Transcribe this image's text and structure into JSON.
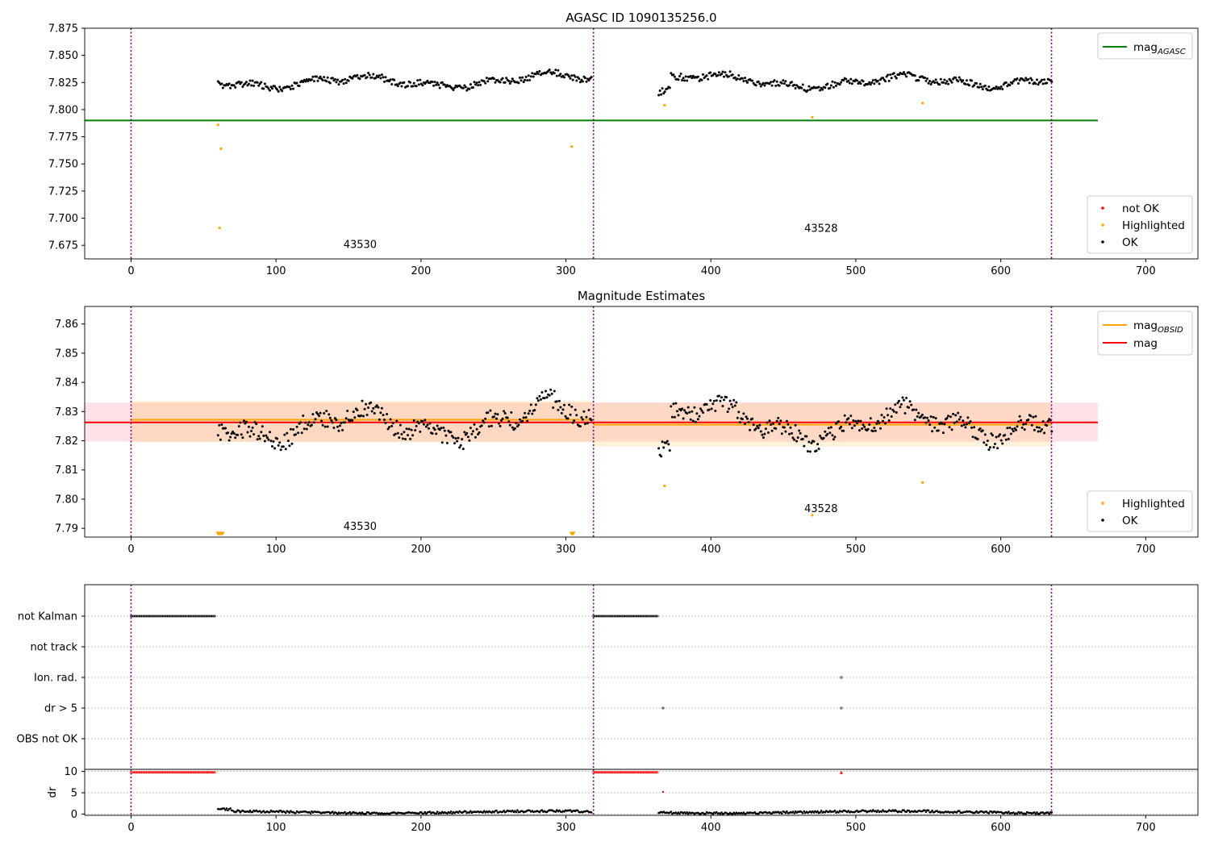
{
  "chart_data": [
    {
      "id": "top",
      "type": "scatter",
      "title": "AGASC ID 1090135256.0",
      "xlabel": "",
      "ylabel": "",
      "xlim": [
        -32,
        736
      ],
      "ylim": [
        7.6625,
        7.875
      ],
      "xticks": [
        0,
        100,
        200,
        300,
        400,
        500,
        600,
        700
      ],
      "yticks": [
        7.675,
        7.7,
        7.725,
        7.75,
        7.775,
        7.8,
        7.825,
        7.85,
        7.875
      ],
      "ytick_labels": [
        "7.675",
        "7.700",
        "7.725",
        "7.750",
        "7.775",
        "7.800",
        "7.825",
        "7.850",
        "7.875"
      ],
      "obsid_boundaries": [
        0,
        319,
        635
      ],
      "obsid_labels": [
        {
          "text": "43530",
          "x": 158,
          "y": 7.6725
        },
        {
          "text": "43528",
          "x": 476,
          "y": 7.6875
        }
      ],
      "lines": [
        {
          "name": "mag_AGASC",
          "y": 7.79,
          "x": [
            -32,
            667
          ],
          "color": "#008000"
        }
      ],
      "legend_top": {
        "position": "upper-right",
        "entries": [
          {
            "label": "mag",
            "subscript": "AGASC",
            "color": "#008000",
            "kind": "line"
          }
        ]
      },
      "legend_bottom": {
        "position": "lower-right",
        "entries": [
          {
            "label": "not OK",
            "color": "#ff0000",
            "kind": "dot"
          },
          {
            "label": "Highlighted",
            "color": "#ffa500",
            "kind": "dot"
          },
          {
            "label": "OK",
            "color": "#000000",
            "kind": "dot"
          }
        ]
      },
      "series": [
        {
          "name": "OK",
          "color": "#000000",
          "generated": true,
          "segments": [
            [
              60,
              318
            ],
            [
              364,
              636
            ]
          ]
        },
        {
          "name": "Highlighted",
          "color": "#ffa500",
          "x": [
            60,
            62,
            61,
            304,
            368,
            470,
            546
          ],
          "y": [
            7.786,
            7.764,
            7.691,
            7.766,
            7.804,
            7.793,
            7.806
          ]
        }
      ]
    },
    {
      "id": "middle",
      "type": "scatter",
      "title": "Magnitude Estimates",
      "xlabel": "",
      "ylabel": "",
      "xlim": [
        -32,
        736
      ],
      "ylim": [
        7.787,
        7.866
      ],
      "xticks": [
        0,
        100,
        200,
        300,
        400,
        500,
        600,
        700
      ],
      "yticks": [
        7.79,
        7.8,
        7.81,
        7.82,
        7.83,
        7.84,
        7.85,
        7.86
      ],
      "ytick_labels": [
        "7.79",
        "7.80",
        "7.81",
        "7.82",
        "7.83",
        "7.84",
        "7.85",
        "7.86"
      ],
      "obsid_boundaries": [
        0,
        319,
        635
      ],
      "obsid_labels": [
        {
          "text": "43530",
          "x": 158,
          "y": 7.7895
        },
        {
          "text": "43528",
          "x": 476,
          "y": 7.7955
        }
      ],
      "bands": [
        {
          "x": [
            -32,
            667
          ],
          "y": [
            7.8197,
            7.8331
          ],
          "color": "#ff3355",
          "opacity": 0.14
        },
        {
          "x": [
            0,
            319
          ],
          "y": [
            7.8196,
            7.8336
          ],
          "color": "#ffa500",
          "opacity": 0.16
        },
        {
          "x": [
            319,
            635
          ],
          "y": [
            7.818,
            7.833
          ],
          "color": "#ffa500",
          "opacity": 0.14
        }
      ],
      "lines": [
        {
          "name": "mag_OBSID 43530",
          "y": 7.8272,
          "x": [
            0,
            319
          ],
          "color": "#ffa500"
        },
        {
          "name": "mag_OBSID 43528",
          "y": 7.8255,
          "x": [
            319,
            635
          ],
          "color": "#ffa500"
        },
        {
          "name": "mag",
          "y": 7.8263,
          "x": [
            -32,
            667
          ],
          "color": "#ff0000"
        }
      ],
      "legend_top": {
        "position": "upper-right",
        "entries": [
          {
            "label": "mag",
            "subscript": "OBSID",
            "color": "#ffa500",
            "kind": "line"
          },
          {
            "label": "mag",
            "subscript": "",
            "color": "#ff0000",
            "kind": "line"
          }
        ]
      },
      "legend_bottom": {
        "position": "lower-right",
        "entries": [
          {
            "label": "Highlighted",
            "color": "#ffa500",
            "kind": "dot"
          },
          {
            "label": "OK",
            "color": "#000000",
            "kind": "dot"
          }
        ]
      },
      "series": [
        {
          "name": "OK",
          "color": "#000000",
          "generated": true,
          "segments": [
            [
              60,
              318
            ],
            [
              364,
              636
            ]
          ]
        },
        {
          "name": "Highlighted",
          "color": "#ffa500",
          "x": [
            368,
            470,
            546
          ],
          "y": [
            7.8045,
            7.7945,
            7.8057
          ]
        },
        {
          "name": "Highlighted (below range)",
          "color": "#ffa500",
          "marker": "triangle-down",
          "x": [
            60,
            61,
            62,
            63,
            304,
            305
          ],
          "y": [
            7.788,
            7.788,
            7.788,
            7.788,
            7.788,
            7.788
          ]
        }
      ]
    },
    {
      "id": "flags",
      "type": "scatter",
      "title": "",
      "xlabel": "",
      "ylabel": "",
      "xlim": [
        -32,
        736
      ],
      "categories": [
        "not Kalman",
        "not track",
        "Ion. rad.",
        "dr > 5",
        "OBS not OK"
      ],
      "series": [
        {
          "name": "not Kalman",
          "color": "#000000",
          "ranges": [
            [
              0,
              58
            ],
            [
              319,
              364
            ]
          ],
          "x": []
        },
        {
          "name": "not track",
          "color": "#000000",
          "ranges": [],
          "x": []
        },
        {
          "name": "Ion. rad.",
          "color": "#000000",
          "ranges": [],
          "x": [
            490
          ]
        },
        {
          "name": "dr > 5",
          "color": "#000000",
          "ranges": [],
          "x": [
            367,
            490
          ]
        },
        {
          "name": "OBS not OK",
          "color": "#000000",
          "ranges": [],
          "x": []
        }
      ],
      "obsid_boundaries": [
        0,
        319,
        635
      ]
    },
    {
      "id": "dr",
      "type": "scatter",
      "title": "",
      "xlabel": "",
      "ylabel": "dr",
      "xlim": [
        -32,
        736
      ],
      "ylim": [
        -0.3,
        10.5
      ],
      "xticks": [
        0,
        100,
        200,
        300,
        400,
        500,
        600,
        700
      ],
      "yticks": [
        0,
        5,
        10
      ],
      "ytick_labels": [
        "0",
        "5",
        "10"
      ],
      "obsid_boundaries": [
        0,
        319,
        635
      ],
      "series": [
        {
          "name": "not OK (clipped)",
          "color": "#ff0000",
          "ranges": [
            [
              0,
              58
            ],
            [
              319,
              364
            ]
          ],
          "y": 9.8,
          "extra_x": [
            490
          ],
          "extra_y": [
            9.8
          ]
        },
        {
          "name": "not OK",
          "color": "#ff0000",
          "x": [
            367
          ],
          "y": [
            5.2
          ]
        },
        {
          "name": "OK",
          "color": "#000000",
          "generated": true,
          "segments": [
            [
              60,
              318
            ],
            [
              364,
              636
            ]
          ]
        }
      ]
    }
  ]
}
